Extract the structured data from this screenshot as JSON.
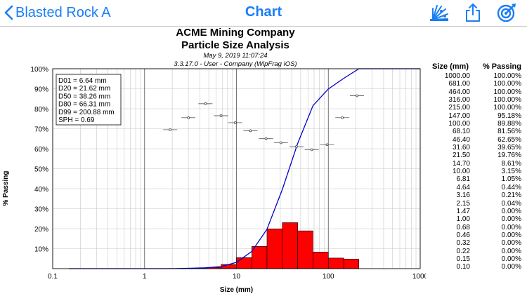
{
  "nav": {
    "back_label": "Blasted Rock A",
    "title": "Chart",
    "icons": [
      "blast-icon",
      "share-icon",
      "target-icon"
    ]
  },
  "header": {
    "company": "ACME Mining Company",
    "subtitle": "Particle Size Analysis",
    "date": "May 9, 2019 11:07:24",
    "version": "3.3.17.0  -  User - Company (WipFrag iOS)"
  },
  "stats": [
    "D01 = 6.64 mm",
    "D20 = 21.62 mm",
    "D50 = 38.26 mm",
    "D80 = 66.31 mm",
    "D99 = 200.88 mm",
    "SPH = 0.69"
  ],
  "table": {
    "headers": [
      "Size (mm)",
      "% Passing"
    ],
    "rows": [
      [
        "1000.00",
        "100.00%"
      ],
      [
        "681.00",
        "100.00%"
      ],
      [
        "464.00",
        "100.00%"
      ],
      [
        "316.00",
        "100.00%"
      ],
      [
        "215.00",
        "100.00%"
      ],
      [
        "147.00",
        "95.18%"
      ],
      [
        "100.00",
        "89.88%"
      ],
      [
        "68.10",
        "81.56%"
      ],
      [
        "46.40",
        "62.65%"
      ],
      [
        "31.60",
        "39.65%"
      ],
      [
        "21.50",
        "19.76%"
      ],
      [
        "14.70",
        "8.61%"
      ],
      [
        "10.00",
        "3.15%"
      ],
      [
        "6.81",
        "1.05%"
      ],
      [
        "4.64",
        "0.44%"
      ],
      [
        "3.16",
        "0.21%"
      ],
      [
        "2.15",
        "0.04%"
      ],
      [
        "1.47",
        "0.00%"
      ],
      [
        "1.00",
        "0.00%"
      ],
      [
        "0.68",
        "0.00%"
      ],
      [
        "0.46",
        "0.00%"
      ],
      [
        "0.32",
        "0.00%"
      ],
      [
        "0.22",
        "0.00%"
      ],
      [
        "0.15",
        "0.00%"
      ],
      [
        "0.10",
        "0.00%"
      ]
    ]
  },
  "chart_data": {
    "type": "bar",
    "xlabel": "Size (mm)",
    "ylabel": "% Passing",
    "xscale": "log",
    "xlim": [
      0.1,
      1000
    ],
    "ylim": [
      0,
      100
    ],
    "x_ticks": [
      "0.1",
      "1",
      "10",
      "100",
      "1000"
    ],
    "y_ticks": [
      "10%",
      "20%",
      "30%",
      "40%",
      "50%",
      "60%",
      "70%",
      "80%",
      "90%",
      "100%"
    ],
    "colors": {
      "bars": "#ff0000",
      "line": "#0000cc"
    },
    "histogram": [
      {
        "from": 3.16,
        "to": 4.64,
        "value": 0.2
      },
      {
        "from": 4.64,
        "to": 6.81,
        "value": 0.6
      },
      {
        "from": 6.81,
        "to": 10.0,
        "value": 2.1
      },
      {
        "from": 10.0,
        "to": 14.7,
        "value": 5.5
      },
      {
        "from": 14.7,
        "to": 21.5,
        "value": 11.1
      },
      {
        "from": 21.5,
        "to": 31.6,
        "value": 19.9
      },
      {
        "from": 31.6,
        "to": 46.4,
        "value": 23.0
      },
      {
        "from": 46.4,
        "to": 68.1,
        "value": 18.9
      },
      {
        "from": 68.1,
        "to": 100.0,
        "value": 8.3
      },
      {
        "from": 100.0,
        "to": 147.0,
        "value": 5.3
      },
      {
        "from": 147.0,
        "to": 215.0,
        "value": 4.8
      }
    ],
    "cumulative": {
      "x": [
        0.15,
        1.47,
        2.15,
        3.16,
        4.64,
        6.81,
        10.0,
        14.7,
        21.5,
        31.6,
        46.4,
        68.1,
        100.0,
        147.0,
        215.0,
        316.0,
        464.0,
        681.0,
        1000.0
      ],
      "y": [
        0,
        0,
        0.04,
        0.21,
        0.44,
        1.05,
        3.15,
        8.61,
        19.76,
        39.65,
        62.65,
        81.56,
        89.88,
        95.18,
        100,
        100,
        100,
        100,
        100
      ]
    },
    "markers": [
      {
        "x": 1.9,
        "y": 69.5
      },
      {
        "x": 3.0,
        "y": 75.5
      },
      {
        "x": 4.6,
        "y": 82.5
      },
      {
        "x": 6.8,
        "y": 76.5
      },
      {
        "x": 9.7,
        "y": 73.0
      },
      {
        "x": 14.2,
        "y": 69.0
      },
      {
        "x": 21.0,
        "y": 65.0
      },
      {
        "x": 30.5,
        "y": 63.0
      },
      {
        "x": 45.0,
        "y": 61.0
      },
      {
        "x": 66.0,
        "y": 59.5
      },
      {
        "x": 97.0,
        "y": 62.0
      },
      {
        "x": 142.0,
        "y": 75.5
      },
      {
        "x": 205.0,
        "y": 86.5
      }
    ]
  }
}
